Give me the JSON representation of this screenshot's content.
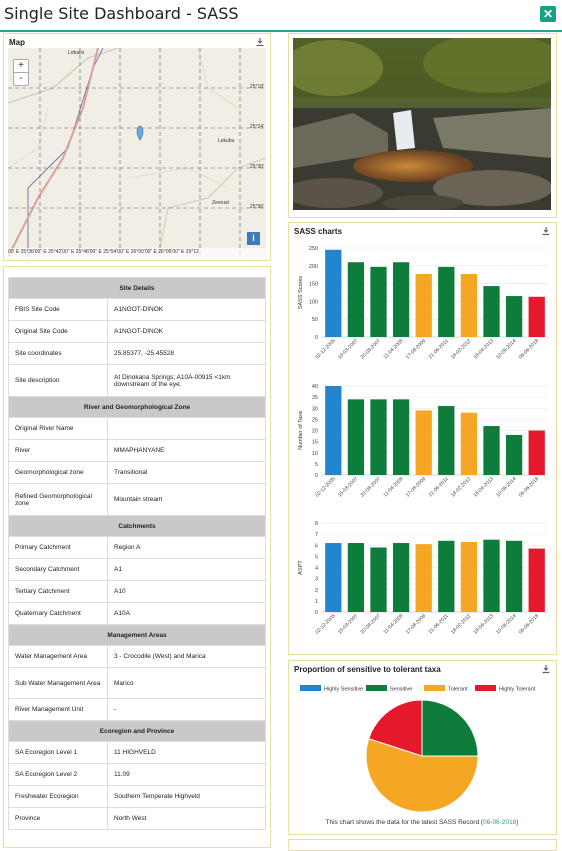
{
  "page": {
    "title": "Single Site Dashboard - SASS",
    "close_icon": "close-icon"
  },
  "map": {
    "title": "Map",
    "zoom_in": "+",
    "zoom_out": "-",
    "info": "i",
    "place_names": [
      "Lobatsi",
      "Lekubu",
      "Zeerust"
    ],
    "lat_labels": [
      "25°18'",
      "25°24'",
      "25°30'",
      "25°36'"
    ],
    "coords_line": "00' E   25°36'00\" E   25°42'00\" E   25°48'00\" E   25°54'00\" E   26°00'00\" E   26°06'00\" E   26°12"
  },
  "site_details": {
    "rows": [
      {
        "section": "Site Details"
      },
      {
        "key": "FBIS Site Code",
        "value": "A1NGOT-DINOK"
      },
      {
        "key": "Original Site Code",
        "value": "A1NGOT-DINOK"
      },
      {
        "key": "Site coordinates",
        "value": "25.85377, -25.45528"
      },
      {
        "key": "Site description",
        "value": "At Dinokana Springs; A10A-00915 <1km downstream of the eye."
      },
      {
        "section": "River and Geomorphological Zone"
      },
      {
        "key": "Original River Name",
        "value": ""
      },
      {
        "key": "River",
        "value": "MMAPHANYANE"
      },
      {
        "key": "Geomorphological zone",
        "value": "Transitional"
      },
      {
        "key": "Refined Geomorphological zone",
        "value": "Mountain stream"
      },
      {
        "section": "Catchments"
      },
      {
        "key": "Primary Catchment",
        "value": "Region A"
      },
      {
        "key": "Secondary Catchment",
        "value": "A1"
      },
      {
        "key": "Tertiary Catchment",
        "value": "A10"
      },
      {
        "key": "Quaternary Catchment",
        "value": "A10A"
      },
      {
        "section": "Management Areas"
      },
      {
        "key": "Water Management Area",
        "value": "3 - Crocodile (West) and Marica"
      },
      {
        "key": "Sub Water Management Area",
        "value": "Marico"
      },
      {
        "key": "River Management Unit",
        "value": "-"
      },
      {
        "section": "Ecoregion and Province"
      },
      {
        "key": "SA Ecoregion Level 1",
        "value": "11 HIGHVELD"
      },
      {
        "key": "SA Ecoregion Level 2",
        "value": "11.09"
      },
      {
        "key": "Freshwater Ecoregion",
        "value": "Southern Temperate Highveld"
      },
      {
        "key": "Province",
        "value": "North West"
      }
    ]
  },
  "sass_panel": {
    "title": "SASS charts"
  },
  "proportion_panel": {
    "title": "Proportion of sensitive to tolerant taxa",
    "note_prefix": "This chart shows the data for the latest SASS Record (",
    "note_date": "06-06-2018",
    "note_suffix": ")"
  },
  "colors": {
    "highly_sensitive": "#2185d0",
    "sensitive": "#0e7c3a",
    "tolerant": "#f5a623",
    "highly_tolerant": "#e41a2c",
    "accent": "#2a9d8f"
  },
  "chart_data": [
    {
      "type": "bar",
      "ylabel": "SASS Scores",
      "ylim": [
        0,
        250
      ],
      "yticks": [
        0,
        50,
        100,
        150,
        200,
        250
      ],
      "categories": [
        "02-12-2005",
        "15-03-2007",
        "20-08-2007",
        "11-04-2008",
        "17-08-2009",
        "21-06-2011",
        "18-02-2012",
        "18-04-2013",
        "10-06-2014",
        "06-06-2018"
      ],
      "values": [
        245,
        210,
        197,
        210,
        177,
        197,
        177,
        143,
        115,
        113
      ],
      "bar_classes": [
        "hs",
        "s",
        "s",
        "s",
        "t",
        "s",
        "t",
        "s",
        "s",
        "ht"
      ]
    },
    {
      "type": "bar",
      "ylabel": "Number of Taxa",
      "ylim": [
        0,
        40
      ],
      "yticks": [
        0,
        5,
        10,
        15,
        20,
        25,
        30,
        35,
        40
      ],
      "categories": [
        "02-12-2005",
        "15-03-2007",
        "20-08-2007",
        "11-04-2008",
        "17-08-2009",
        "21-06-2011",
        "18-02-2012",
        "18-04-2013",
        "10-06-2014",
        "06-06-2018"
      ],
      "values": [
        40,
        34,
        34,
        34,
        29,
        31,
        28,
        22,
        18,
        20
      ],
      "bar_classes": [
        "hs",
        "s",
        "s",
        "s",
        "t",
        "s",
        "t",
        "s",
        "s",
        "ht"
      ]
    },
    {
      "type": "bar",
      "ylabel": "ASPT",
      "ylim": [
        0,
        8
      ],
      "yticks": [
        0,
        1,
        2,
        3,
        4,
        5,
        6,
        7,
        8
      ],
      "categories": [
        "02-12-2005",
        "15-03-2007",
        "20-08-2007",
        "11-04-2008",
        "17-08-2009",
        "21-06-2011",
        "18-02-2012",
        "18-04-2013",
        "10-06-2014",
        "06-06-2018"
      ],
      "values": [
        6.2,
        6.2,
        5.8,
        6.2,
        6.1,
        6.4,
        6.3,
        6.5,
        6.4,
        5.7
      ],
      "bar_classes": [
        "hs",
        "s",
        "s",
        "s",
        "t",
        "s",
        "t",
        "s",
        "s",
        "ht"
      ]
    },
    {
      "type": "pie",
      "legend": [
        "Highly Sensitive",
        "Sensitive",
        "Tolerant",
        "Highly Tolerant"
      ],
      "values": [
        0,
        5,
        11,
        4
      ]
    }
  ]
}
